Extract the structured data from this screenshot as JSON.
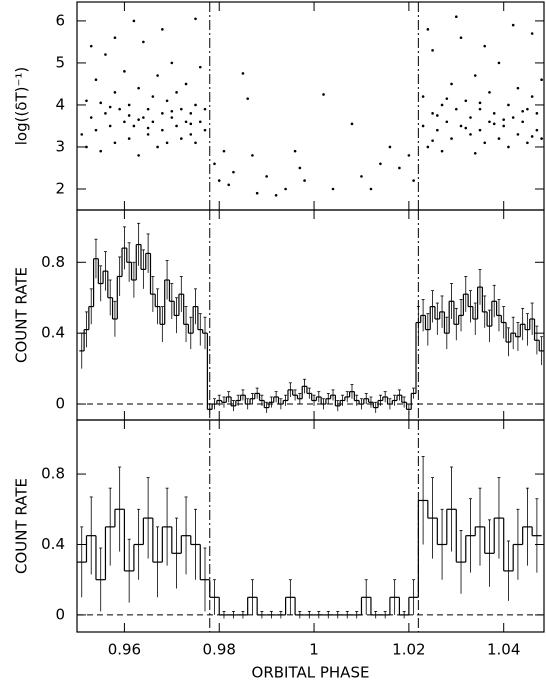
{
  "chart_data": [
    {
      "type": "scatter",
      "y_label": "log((δT)⁻¹)",
      "xlim": [
        0.95,
        1.0485
      ],
      "ylim": [
        1.5,
        6.45
      ],
      "xticks": [
        0.96,
        0.98,
        1,
        1.02,
        1.04
      ],
      "yticks": [
        2,
        3,
        4,
        5,
        6
      ],
      "vlines": [
        0.978,
        1.022
      ],
      "color": "#000000",
      "x": [
        0.951,
        0.952,
        0.952,
        0.953,
        0.954,
        0.954,
        0.955,
        0.956,
        0.956,
        0.957,
        0.958,
        0.958,
        0.959,
        0.96,
        0.96,
        0.961,
        0.961,
        0.962,
        0.963,
        0.963,
        0.964,
        0.964,
        0.965,
        0.965,
        0.966,
        0.966,
        0.967,
        0.967,
        0.968,
        0.968,
        0.969,
        0.969,
        0.97,
        0.97,
        0.971,
        0.971,
        0.972,
        0.972,
        0.973,
        0.973,
        0.974,
        0.974,
        0.975,
        0.975,
        0.976,
        0.976,
        0.977,
        0.977,
        0.953,
        0.958,
        0.962,
        0.968,
        0.975,
        0.957,
        0.961,
        0.965,
        0.97,
        0.974,
        0.955,
        0.963,
        0.979,
        0.98,
        0.981,
        0.982,
        0.983,
        0.985,
        0.986,
        0.987,
        0.988,
        0.99,
        0.992,
        0.994,
        0.996,
        0.997,
        0.998,
        1.002,
        1.004,
        1.008,
        1.01,
        1.012,
        1.014,
        1.016,
        1.018,
        1.02,
        1.021,
        1.023,
        1.023,
        1.024,
        1.025,
        1.025,
        1.026,
        1.027,
        1.027,
        1.028,
        1.029,
        1.029,
        1.03,
        1.031,
        1.031,
        1.032,
        1.033,
        1.033,
        1.034,
        1.035,
        1.035,
        1.036,
        1.037,
        1.037,
        1.038,
        1.039,
        1.039,
        1.04,
        1.041,
        1.041,
        1.042,
        1.043,
        1.043,
        1.044,
        1.045,
        1.045,
        1.046,
        1.047,
        1.047,
        1.048,
        1.048,
        1.024,
        1.03,
        1.036,
        1.042,
        1.046,
        1.026,
        1.032,
        1.038,
        1.044,
        1.028,
        1.034,
        1.04,
        1.046,
        1.025,
        1.035
      ],
      "values": [
        3.3,
        4.1,
        3.0,
        3.7,
        4.6,
        3.4,
        2.9,
        3.8,
        5.2,
        3.5,
        4.3,
        3.1,
        3.9,
        3.6,
        4.8,
        3.2,
        4.0,
        3.5,
        4.4,
        2.8,
        3.7,
        5.5,
        3.9,
        3.3,
        4.2,
        3.6,
        3.0,
        4.7,
        3.8,
        3.4,
        4.1,
        3.1,
        3.7,
        5.0,
        3.5,
        4.3,
        3.2,
        3.9,
        3.6,
        4.5,
        3.3,
        3.8,
        4.0,
        3.1,
        3.6,
        4.9,
        3.4,
        3.9,
        5.4,
        5.6,
        6.0,
        5.8,
        6.05,
        3.95,
        3.75,
        3.45,
        3.85,
        3.55,
        4.05,
        3.65,
        2.6,
        2.2,
        2.9,
        2.1,
        2.4,
        4.75,
        4.15,
        2.8,
        1.9,
        2.3,
        1.85,
        2.0,
        2.9,
        2.5,
        2.2,
        4.25,
        2.0,
        3.55,
        2.3,
        2.0,
        2.6,
        3.0,
        2.5,
        2.8,
        2.2,
        3.5,
        4.2,
        3.0,
        3.8,
        5.3,
        3.4,
        4.0,
        2.9,
        3.6,
        4.5,
        3.2,
        3.9,
        3.5,
        5.6,
        4.1,
        3.3,
        3.7,
        4.7,
        3.4,
        3.9,
        3.1,
        4.3,
        3.6,
        3.8,
        3.2,
        5.0,
        3.5,
        4.0,
        3.0,
        3.7,
        4.4,
        3.3,
        3.6,
        3.9,
        3.1,
        4.2,
        3.4,
        3.8,
        3.2,
        4.6,
        5.8,
        6.1,
        5.4,
        5.9,
        5.7,
        3.75,
        3.45,
        3.55,
        3.85,
        4.15,
        2.85,
        3.65,
        3.25,
        3.15,
        4.05
      ]
    },
    {
      "type": "step",
      "y_label": "COUNT RATE",
      "xlim": [
        0.95,
        1.0485
      ],
      "ylim": [
        -0.09,
        1.095
      ],
      "xticks": [
        0.96,
        0.98,
        1,
        1.02,
        1.04
      ],
      "yticks": [
        0,
        0.4,
        0.8
      ],
      "vlines": [
        0.978,
        1.022
      ],
      "hline": 0,
      "color": "#000000",
      "x": [
        0.951,
        0.952,
        0.953,
        0.954,
        0.955,
        0.956,
        0.957,
        0.958,
        0.959,
        0.96,
        0.961,
        0.962,
        0.963,
        0.964,
        0.965,
        0.966,
        0.967,
        0.968,
        0.969,
        0.97,
        0.971,
        0.972,
        0.973,
        0.974,
        0.975,
        0.976,
        0.977,
        0.978,
        0.979,
        0.98,
        0.981,
        0.982,
        0.983,
        0.984,
        0.985,
        0.986,
        0.987,
        0.988,
        0.989,
        0.99,
        0.991,
        0.992,
        0.993,
        0.994,
        0.995,
        0.996,
        0.997,
        0.998,
        0.999,
        1.0,
        1.001,
        1.002,
        1.003,
        1.004,
        1.005,
        1.006,
        1.007,
        1.008,
        1.009,
        1.01,
        1.011,
        1.012,
        1.013,
        1.014,
        1.015,
        1.016,
        1.017,
        1.018,
        1.019,
        1.02,
        1.021,
        1.022,
        1.023,
        1.024,
        1.025,
        1.026,
        1.027,
        1.028,
        1.029,
        1.03,
        1.031,
        1.032,
        1.033,
        1.034,
        1.035,
        1.036,
        1.037,
        1.038,
        1.039,
        1.04,
        1.041,
        1.042,
        1.043,
        1.044,
        1.045,
        1.046,
        1.047,
        1.048
      ],
      "values": [
        0.3,
        0.42,
        0.55,
        0.82,
        0.68,
        0.75,
        0.6,
        0.48,
        0.72,
        0.88,
        0.8,
        0.7,
        0.9,
        0.76,
        0.85,
        0.62,
        0.55,
        0.45,
        0.7,
        0.58,
        0.5,
        0.62,
        0.45,
        0.4,
        0.55,
        0.42,
        0.4,
        -0.03,
        0.0,
        0.02,
        0.01,
        0.04,
        -0.01,
        0.02,
        0.05,
        0.0,
        0.03,
        0.06,
        0.02,
        -0.02,
        0.01,
        0.04,
        0.0,
        0.02,
        0.08,
        0.05,
        0.03,
        0.1,
        0.06,
        0.02,
        0.04,
        0.0,
        0.03,
        0.05,
        -0.01,
        0.02,
        0.04,
        0.07,
        0.02,
        0.0,
        0.03,
        0.01,
        -0.02,
        0.02,
        0.04,
        0.0,
        0.02,
        0.05,
        0.01,
        -0.03,
        0.06,
        0.46,
        0.5,
        0.42,
        0.55,
        0.48,
        0.52,
        0.4,
        0.58,
        0.45,
        0.5,
        0.62,
        0.55,
        0.48,
        0.66,
        0.52,
        0.44,
        0.58,
        0.5,
        0.46,
        0.35,
        0.4,
        0.38,
        0.45,
        0.42,
        0.48,
        0.36,
        0.3
      ],
      "errors": [
        0.1,
        0.1,
        0.1,
        0.11,
        0.1,
        0.11,
        0.1,
        0.1,
        0.11,
        0.12,
        0.11,
        0.1,
        0.12,
        0.11,
        0.11,
        0.1,
        0.1,
        0.1,
        0.11,
        0.1,
        0.1,
        0.1,
        0.1,
        0.09,
        0.1,
        0.09,
        0.09,
        0.03,
        0.03,
        0.03,
        0.03,
        0.03,
        0.03,
        0.03,
        0.03,
        0.03,
        0.03,
        0.03,
        0.03,
        0.03,
        0.03,
        0.03,
        0.03,
        0.03,
        0.04,
        0.03,
        0.03,
        0.04,
        0.03,
        0.03,
        0.03,
        0.03,
        0.03,
        0.03,
        0.03,
        0.03,
        0.03,
        0.04,
        0.03,
        0.03,
        0.03,
        0.03,
        0.03,
        0.03,
        0.03,
        0.03,
        0.03,
        0.03,
        0.03,
        0.03,
        0.03,
        0.09,
        0.09,
        0.09,
        0.09,
        0.09,
        0.09,
        0.09,
        0.1,
        0.09,
        0.09,
        0.1,
        0.09,
        0.09,
        0.1,
        0.09,
        0.09,
        0.09,
        0.09,
        0.09,
        0.08,
        0.09,
        0.08,
        0.09,
        0.09,
        0.09,
        0.08,
        0.08
      ]
    },
    {
      "type": "step",
      "y_label": "COUNT RATE",
      "x_label": "ORBITAL PHASE",
      "xlim": [
        0.95,
        1.0485
      ],
      "ylim": [
        -0.097,
        1.107
      ],
      "xticks": [
        0.96,
        0.98,
        1,
        1.02,
        1.04
      ],
      "yticks": [
        0,
        0.4,
        0.8
      ],
      "vlines": [
        0.978,
        1.022
      ],
      "hline": 0,
      "color": "#000000",
      "x": [
        0.951,
        0.953,
        0.955,
        0.957,
        0.959,
        0.961,
        0.963,
        0.965,
        0.967,
        0.969,
        0.971,
        0.973,
        0.975,
        0.977,
        0.979,
        0.981,
        0.983,
        0.985,
        0.987,
        0.989,
        0.991,
        0.993,
        0.995,
        0.997,
        0.999,
        1.001,
        1.003,
        1.005,
        1.007,
        1.009,
        1.011,
        1.013,
        1.015,
        1.017,
        1.019,
        1.021,
        1.023,
        1.025,
        1.027,
        1.029,
        1.031,
        1.033,
        1.035,
        1.037,
        1.039,
        1.041,
        1.043,
        1.045,
        1.047
      ],
      "values": [
        0.3,
        0.45,
        0.2,
        0.5,
        0.6,
        0.25,
        0.4,
        0.55,
        0.3,
        0.5,
        0.35,
        0.45,
        0.4,
        0.2,
        0.1,
        0,
        0,
        0,
        0.1,
        0,
        0,
        0,
        0.1,
        0,
        0,
        0,
        0,
        0,
        0,
        0,
        0.1,
        0,
        0,
        0.1,
        0,
        0.1,
        0.65,
        0.55,
        0.4,
        0.6,
        0.3,
        0.45,
        0.5,
        0.35,
        0.55,
        0.25,
        0.4,
        0.5,
        0.45
      ],
      "errors": [
        0.2,
        0.22,
        0.18,
        0.22,
        0.24,
        0.18,
        0.2,
        0.23,
        0.2,
        0.22,
        0.2,
        0.22,
        0.2,
        0.18,
        0.1,
        0.02,
        0.02,
        0.02,
        0.1,
        0.02,
        0.02,
        0.02,
        0.1,
        0.02,
        0.02,
        0.02,
        0.02,
        0.02,
        0.02,
        0.02,
        0.1,
        0.02,
        0.02,
        0.1,
        0.02,
        0.1,
        0.25,
        0.23,
        0.2,
        0.24,
        0.18,
        0.21,
        0.22,
        0.19,
        0.23,
        0.17,
        0.2,
        0.22,
        0.21
      ]
    }
  ]
}
